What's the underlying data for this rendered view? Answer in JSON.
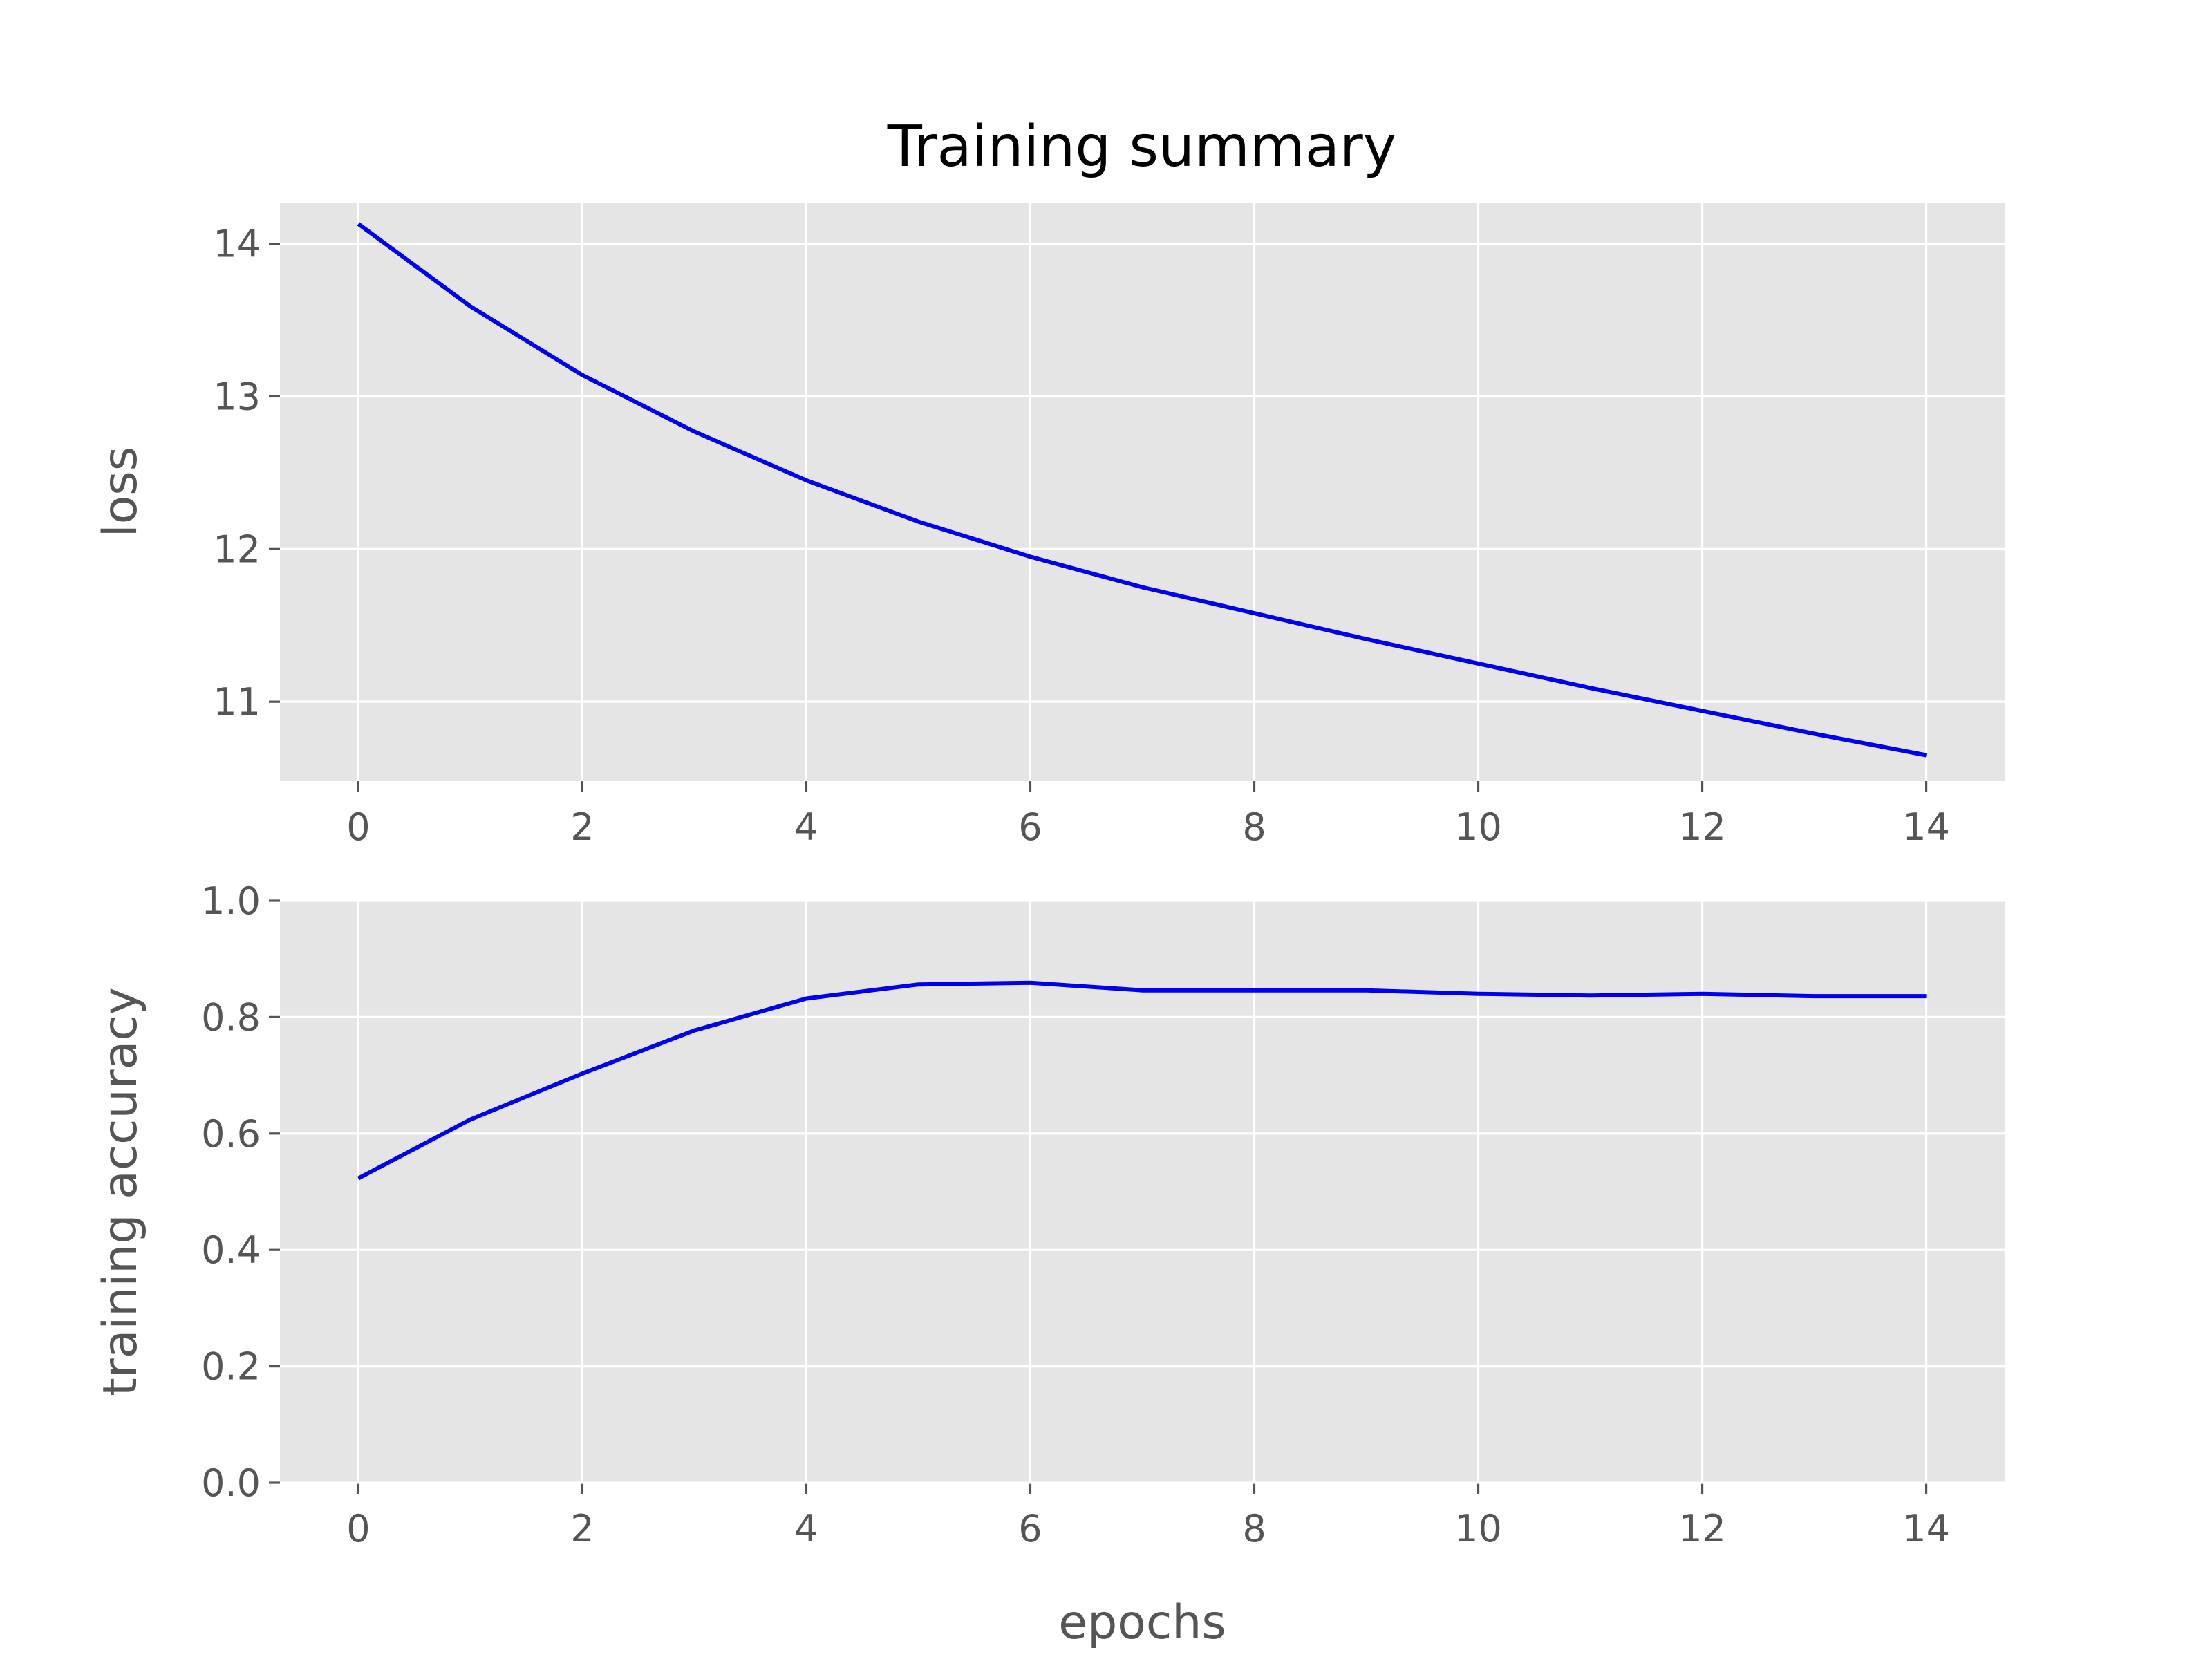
{
  "chart_data": {
    "type": "line",
    "title": "Training summary",
    "line_color": "#0000ee",
    "panel_background": "#e5e5e5",
    "grid": true,
    "panels": [
      {
        "id": "loss",
        "ylabel": "loss",
        "xlabel": "",
        "xlim": [
          -0.7,
          14.7
        ],
        "ylim": [
          10.48,
          14.27
        ],
        "xticks": [
          0,
          2,
          4,
          6,
          8,
          10,
          12,
          14
        ],
        "xtick_labels": [
          "0",
          "2",
          "4",
          "6",
          "8",
          "10",
          "12",
          "14"
        ],
        "yticks": [
          11,
          12,
          13,
          14
        ],
        "ytick_labels": [
          "11",
          "12",
          "13",
          "14"
        ],
        "series": [
          {
            "x": [
              0,
              1,
              2,
              3,
              4,
              5,
              6,
              7,
              8,
              9,
              10,
              11,
              12,
              13,
              14
            ],
            "y": [
              14.13,
              13.59,
              13.14,
              12.77,
              12.45,
              12.18,
              11.95,
              11.75,
              11.58,
              11.41,
              11.25,
              11.09,
              10.94,
              10.79,
              10.65
            ]
          }
        ]
      },
      {
        "id": "accuracy",
        "ylabel": "training accuracy",
        "xlabel": "epochs",
        "xlim": [
          -0.7,
          14.7
        ],
        "ylim": [
          0.0,
          1.0
        ],
        "xticks": [
          0,
          2,
          4,
          6,
          8,
          10,
          12,
          14
        ],
        "xtick_labels": [
          "0",
          "2",
          "4",
          "6",
          "8",
          "10",
          "12",
          "14"
        ],
        "yticks": [
          0.0,
          0.2,
          0.4,
          0.6,
          0.8,
          1.0
        ],
        "ytick_labels": [
          "0.0",
          "0.2",
          "0.4",
          "0.6",
          "0.8",
          "1.0"
        ],
        "series": [
          {
            "x": [
              0,
              1,
              2,
              3,
              4,
              5,
              6,
              7,
              8,
              9,
              10,
              11,
              12,
              13,
              14
            ],
            "y": [
              0.523,
              0.624,
              0.703,
              0.777,
              0.832,
              0.856,
              0.859,
              0.846,
              0.846,
              0.846,
              0.84,
              0.837,
              0.84,
              0.836,
              0.836
            ]
          }
        ]
      }
    ]
  }
}
